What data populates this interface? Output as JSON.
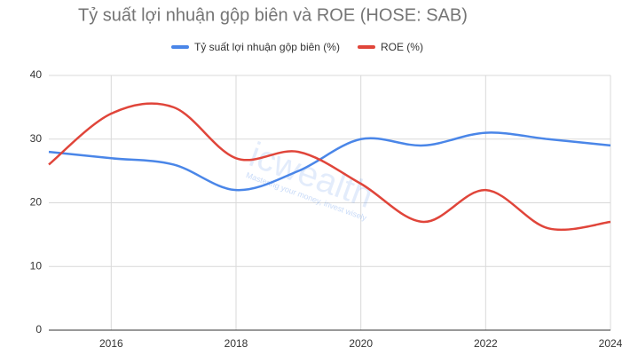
{
  "chart_data": {
    "type": "line",
    "title": "Tỷ suất lợi nhuận gộp biên và ROE (HOSE: SAB)",
    "watermark": "icwealth",
    "watermark_tagline": "Mastering your money, invest wisely",
    "x": [
      2015,
      2016,
      2017,
      2018,
      2019,
      2020,
      2021,
      2022,
      2023,
      2024
    ],
    "series": [
      {
        "name": "Tỷ suất lợi nhuận gộp biên (%)",
        "color": "#4a86e8",
        "values": [
          28,
          27,
          26,
          22,
          25,
          30,
          29,
          31,
          30,
          29
        ]
      },
      {
        "name": "ROE (%)",
        "color": "#e0453a",
        "values": [
          26,
          34,
          35,
          27,
          28,
          23,
          17,
          22,
          16,
          17
        ]
      }
    ],
    "xlim": [
      2015,
      2024
    ],
    "xticks": [
      2016,
      2018,
      2020,
      2022,
      2024
    ],
    "ylim": [
      0,
      40
    ],
    "yticks": [
      0,
      10,
      20,
      30,
      40
    ],
    "grid": true,
    "smooth": true,
    "legend": "top"
  }
}
